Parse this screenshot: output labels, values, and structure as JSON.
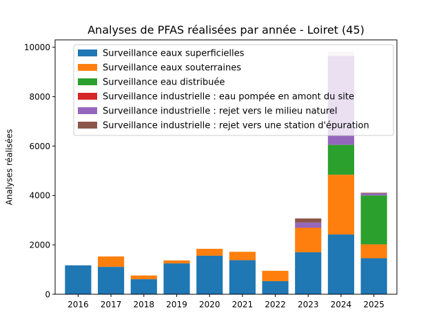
{
  "chart_data": {
    "type": "bar",
    "stacked": true,
    "title": "Analyses de PFAS réalisées par année - Loiret (45)",
    "xlabel": "",
    "ylabel": "Analyses réalisées",
    "categories": [
      "2016",
      "2017",
      "2018",
      "2019",
      "2020",
      "2021",
      "2022",
      "2023",
      "2024",
      "2025"
    ],
    "ylim": [
      0,
      10300
    ],
    "yticks": [
      0,
      2000,
      4000,
      6000,
      8000,
      10000
    ],
    "grid": false,
    "legend_position": "top",
    "series": [
      {
        "name": "Surveillance eaux superficielles",
        "color": "#1f77b4",
        "values": [
          1170,
          1110,
          610,
          1250,
          1560,
          1380,
          530,
          1700,
          2420,
          1460
        ]
      },
      {
        "name": "Surveillance eaux souterraines",
        "color": "#ff7f0e",
        "values": [
          0,
          420,
          150,
          120,
          280,
          340,
          420,
          990,
          2420,
          560
        ]
      },
      {
        "name": "Surveillance eau distribuée",
        "color": "#2ca02c",
        "values": [
          0,
          0,
          0,
          0,
          0,
          0,
          0,
          0,
          1210,
          1980
        ]
      },
      {
        "name": "Surveillance industrielle : eau pompée en amont du site",
        "color": "#d62728",
        "values": [
          0,
          0,
          0,
          0,
          0,
          0,
          0,
          10,
          0,
          0
        ]
      },
      {
        "name": "Surveillance industrielle : rejet vers le milieu naturel",
        "color": "#9467bd",
        "values": [
          0,
          0,
          0,
          0,
          0,
          0,
          0,
          200,
          3600,
          80
        ]
      },
      {
        "name": "Surveillance industrielle : rejet vers une station d'épuration",
        "color": "#8c564b",
        "values": [
          0,
          0,
          0,
          0,
          0,
          0,
          0,
          170,
          0,
          30
        ]
      },
      {
        "name": "",
        "color": "#e0d6d6",
        "values": [
          0,
          0,
          0,
          0,
          0,
          0,
          0,
          0,
          170,
          0
        ]
      }
    ]
  }
}
